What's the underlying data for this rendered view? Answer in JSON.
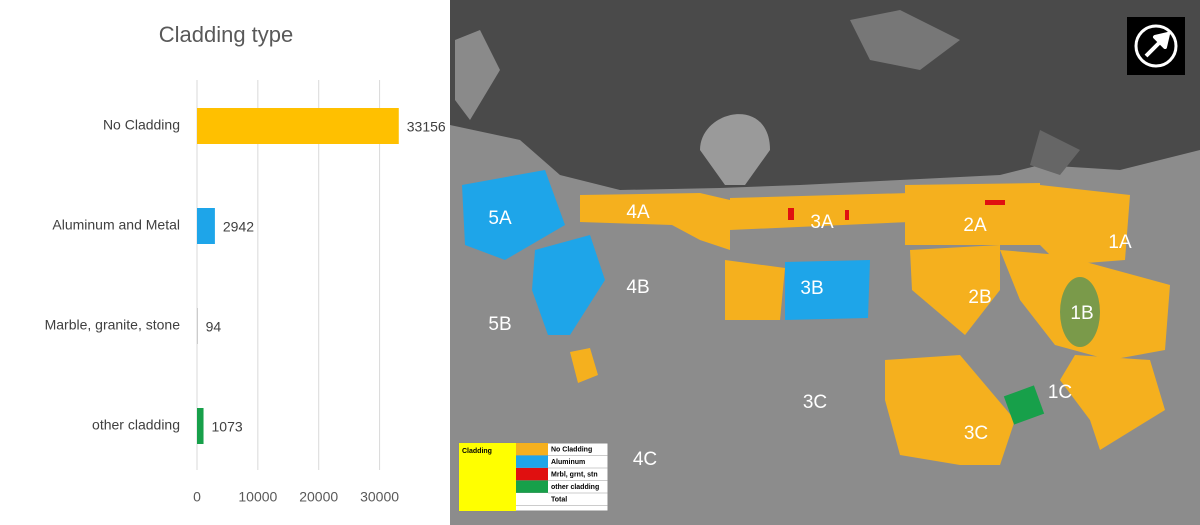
{
  "chart_data": {
    "type": "bar",
    "orientation": "horizontal",
    "title": "Cladding type",
    "categories": [
      "No Cladding",
      "Aluminum and Metal",
      "Marble, granite, stone",
      "other cladding"
    ],
    "values": [
      33156,
      2942,
      94,
      1073
    ],
    "colors": [
      "#ffc000",
      "#1ea5e9",
      "#a5a5a5",
      "#17a04a"
    ],
    "xlim": [
      0,
      35000
    ],
    "xticks": [
      0,
      10000,
      20000,
      30000
    ],
    "grid": true
  },
  "map": {
    "zones": [
      "5A",
      "4A",
      "3A",
      "2A",
      "1A",
      "4B",
      "3B",
      "2B",
      "1B",
      "5B",
      "3C",
      "1C",
      "3C",
      "4C"
    ],
    "legend": {
      "title": "Cladding",
      "items": [
        {
          "label": "No Cladding",
          "color": "#f5b01e"
        },
        {
          "label": "Aluminum",
          "color": "#1ea5e9"
        },
        {
          "label": "Mrbl, grnt, stn",
          "color": "#e01010"
        },
        {
          "label": "other cladding",
          "color": "#17a04a"
        },
        {
          "label": "Total",
          "color": "#ffffff"
        }
      ]
    }
  }
}
